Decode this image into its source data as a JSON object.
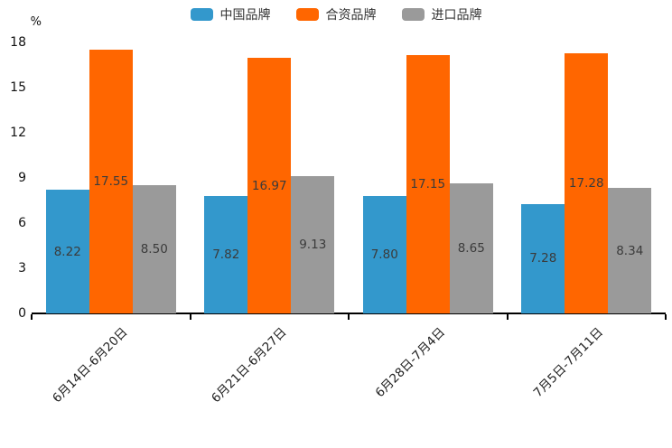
{
  "chart_data": {
    "type": "bar",
    "title": "",
    "unit_label": "%",
    "legend_position": "top-center",
    "grid": false,
    "categories": [
      "6月14日-6月20日",
      "6月21日-6月27日",
      "6月28日-7月4日",
      "7月5日-7月11日"
    ],
    "series": [
      {
        "name": "中国品牌",
        "color": "#3398CC",
        "values": [
          8.22,
          7.82,
          7.8,
          7.28
        ],
        "labels": [
          "8.22",
          "7.82",
          "7.80",
          "7.28"
        ]
      },
      {
        "name": "合资品牌",
        "color": "#FF6600",
        "values": [
          17.55,
          16.97,
          17.15,
          17.28
        ],
        "labels": [
          "17.55",
          "16.97",
          "17.15",
          "17.28"
        ]
      },
      {
        "name": "进口品牌",
        "color": "#9A9A9A",
        "values": [
          8.5,
          9.13,
          8.65,
          8.34
        ],
        "labels": [
          "8.50",
          "9.13",
          "8.65",
          "8.34"
        ]
      }
    ],
    "y_axis": {
      "min": 0,
      "max": 18,
      "step": 3,
      "ticks": [
        "0",
        "3",
        "6",
        "9",
        "12",
        "15",
        "18"
      ]
    },
    "colors": {
      "axis": "#000000",
      "tick_text": "#111111",
      "bar_value_text": "#3b3b3b",
      "legend_text": "#333333"
    }
  }
}
